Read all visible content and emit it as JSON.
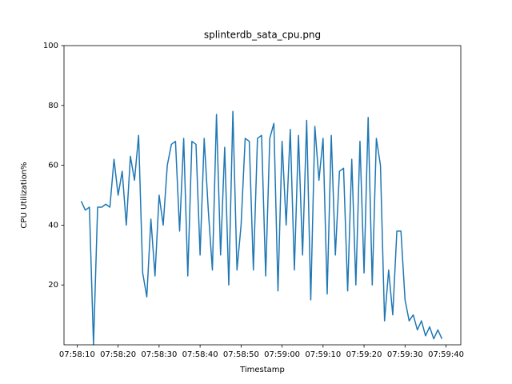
{
  "chart_data": {
    "type": "line",
    "title": "splinterdb_sata_cpu.png",
    "x_label": "Timestamp",
    "y_label": "CPU Utilization%",
    "color": "#1f77b4",
    "x": [
      "07:58:11",
      "07:58:12",
      "07:58:13",
      "07:58:14",
      "07:58:15",
      "07:58:16",
      "07:58:17",
      "07:58:18",
      "07:58:19",
      "07:58:20",
      "07:58:21",
      "07:58:22",
      "07:58:23",
      "07:58:24",
      "07:58:25",
      "07:58:26",
      "07:58:27",
      "07:58:28",
      "07:58:29",
      "07:58:30",
      "07:58:31",
      "07:58:32",
      "07:58:33",
      "07:58:34",
      "07:58:35",
      "07:58:36",
      "07:58:37",
      "07:58:38",
      "07:58:39",
      "07:58:40",
      "07:58:41",
      "07:58:42",
      "07:58:43",
      "07:58:44",
      "07:58:45",
      "07:58:46",
      "07:58:47",
      "07:58:48",
      "07:58:49",
      "07:58:50",
      "07:58:51",
      "07:58:52",
      "07:58:53",
      "07:58:54",
      "07:58:55",
      "07:58:56",
      "07:58:57",
      "07:58:58",
      "07:58:59",
      "07:59:00",
      "07:59:01",
      "07:59:02",
      "07:59:03",
      "07:59:04",
      "07:59:05",
      "07:59:06",
      "07:59:07",
      "07:59:08",
      "07:59:09",
      "07:59:10",
      "07:59:11",
      "07:59:12",
      "07:59:13",
      "07:59:14",
      "07:59:15",
      "07:59:16",
      "07:59:17",
      "07:59:18",
      "07:59:19",
      "07:59:20",
      "07:59:21",
      "07:59:22",
      "07:59:23",
      "07:59:24",
      "07:59:25",
      "07:59:26",
      "07:59:27",
      "07:59:28",
      "07:59:29",
      "07:59:30",
      "07:59:31",
      "07:59:32",
      "07:59:33",
      "07:59:34",
      "07:59:35",
      "07:59:36",
      "07:59:37",
      "07:59:38",
      "07:59:39"
    ],
    "values": [
      48,
      45,
      46,
      0,
      46,
      46,
      47,
      46,
      62,
      50,
      58,
      40,
      63,
      55,
      70,
      24,
      16,
      42,
      23,
      50,
      40,
      60,
      67,
      68,
      38,
      69,
      23,
      68,
      67,
      30,
      69,
      45,
      25,
      77,
      30,
      66,
      20,
      78,
      25,
      40,
      69,
      68,
      25,
      69,
      70,
      23,
      69,
      74,
      18,
      68,
      40,
      72,
      25,
      70,
      30,
      75,
      15,
      73,
      55,
      69,
      17,
      70,
      30,
      58,
      59,
      18,
      62,
      20,
      68,
      24,
      76,
      20,
      69,
      60,
      8,
      25,
      10,
      38,
      38,
      15,
      8,
      10,
      5,
      8,
      3,
      6,
      2,
      5,
      2
    ],
    "xlim": [
      "07:58:06.8",
      "07:59:43.6"
    ],
    "xticks": [
      "07:58:10",
      "07:58:20",
      "07:58:30",
      "07:58:40",
      "07:58:50",
      "07:59:00",
      "07:59:10",
      "07:59:20",
      "07:59:30",
      "07:59:40"
    ],
    "ylim": [
      0,
      100
    ],
    "yticks": [
      20,
      40,
      60,
      80,
      100
    ]
  }
}
